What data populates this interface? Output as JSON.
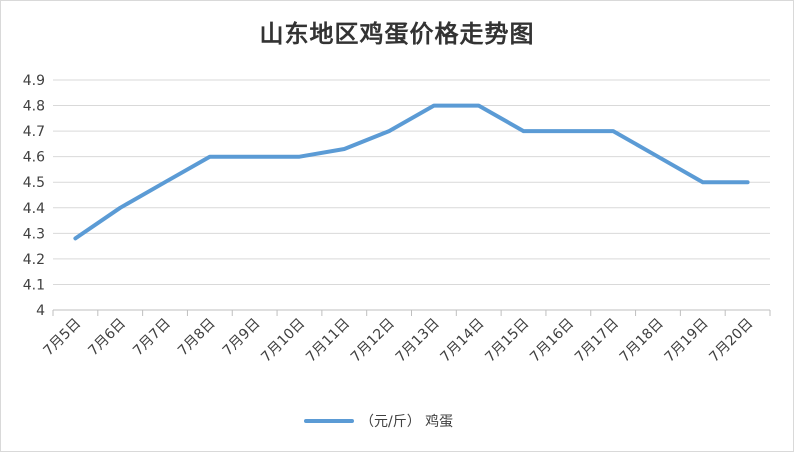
{
  "chart_data": {
    "type": "line",
    "title": "山东地区鸡蛋价格走势图",
    "categories": [
      "7月5日",
      "7月6日",
      "7月7日",
      "7月8日",
      "7月9日",
      "7月10日",
      "7月11日",
      "7月12日",
      "7月13日",
      "7月14日",
      "7月15日",
      "7月16日",
      "7月17日",
      "7月18日",
      "7月19日",
      "7月20日"
    ],
    "series": [
      {
        "name": "（元/斤） 鸡蛋",
        "color": "#5b9bd5",
        "values": [
          4.28,
          4.4,
          4.5,
          4.6,
          4.6,
          4.6,
          4.63,
          4.7,
          4.8,
          4.8,
          4.7,
          4.7,
          4.7,
          4.6,
          4.5,
          4.5
        ]
      }
    ],
    "ylim": [
      4.0,
      4.9
    ],
    "yticks": [
      "4",
      "4.1",
      "4.2",
      "4.3",
      "4.4",
      "4.5",
      "4.6",
      "4.7",
      "4.8",
      "4.9"
    ],
    "grid": true,
    "legend_position": "bottom"
  }
}
